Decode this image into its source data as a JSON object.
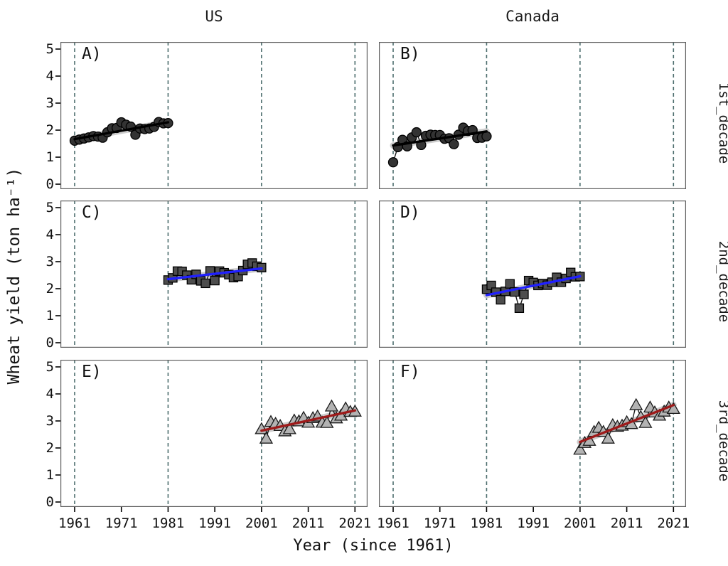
{
  "chart_data": {
    "type": "scatter",
    "title": "",
    "xlabel": "Year (since 1961)",
    "ylabel": "Wheat yield (ton ha⁻¹)",
    "facet_columns": [
      "US",
      "Canada"
    ],
    "facet_rows": [
      "1st_decade",
      "2nd_decade",
      "3rd_decade"
    ],
    "ylim": [
      0,
      5
    ],
    "x_ticks": [
      1961,
      1971,
      1981,
      1991,
      2001,
      2011,
      2021
    ],
    "y_ticks": [
      0,
      1,
      2,
      3,
      4,
      5
    ],
    "vlines": [
      1961,
      1981,
      2001,
      2021
    ],
    "legend": "none",
    "grid": "off",
    "colors": {
      "vline": "#4d6e6e",
      "ribbon": "#c9c9c9",
      "border": "#5f5f5f",
      "connect": "#1a1a1a",
      "tick": "#000000"
    },
    "panels": [
      {
        "label": "A)",
        "col": "US",
        "row": "1st_decade",
        "marker": "circle",
        "marker_fill": "#333333",
        "marker_stroke": "#000000",
        "trend_color": "#000000",
        "years": [
          1961,
          1962,
          1963,
          1964,
          1965,
          1966,
          1967,
          1968,
          1969,
          1970,
          1971,
          1972,
          1973,
          1974,
          1975,
          1976,
          1977,
          1978,
          1979,
          1980,
          1981
        ],
        "values": [
          1.61,
          1.65,
          1.69,
          1.73,
          1.78,
          1.76,
          1.72,
          1.92,
          2.07,
          2.08,
          2.29,
          2.2,
          2.13,
          1.83,
          2.06,
          2.04,
          2.06,
          2.12,
          2.3,
          2.25,
          2.26
        ]
      },
      {
        "label": "B)",
        "col": "Canada",
        "row": "1st_decade",
        "marker": "circle",
        "marker_fill": "#333333",
        "marker_stroke": "#000000",
        "trend_color": "#000000",
        "years": [
          1961,
          1962,
          1963,
          1964,
          1965,
          1966,
          1967,
          1968,
          1969,
          1970,
          1971,
          1972,
          1973,
          1974,
          1975,
          1976,
          1977,
          1978,
          1979,
          1980,
          1981
        ],
        "values": [
          0.81,
          1.37,
          1.64,
          1.4,
          1.73,
          1.92,
          1.45,
          1.79,
          1.83,
          1.82,
          1.82,
          1.68,
          1.7,
          1.48,
          1.83,
          2.09,
          1.97,
          2.0,
          1.71,
          1.72,
          1.77
        ]
      },
      {
        "label": "C)",
        "col": "US",
        "row": "2nd_decade",
        "marker": "square",
        "marker_fill": "#4d4d4d",
        "marker_stroke": "#000000",
        "trend_color": "#2020ff",
        "years": [
          1981,
          1982,
          1983,
          1984,
          1985,
          1986,
          1987,
          1988,
          1989,
          1990,
          1991,
          1992,
          1993,
          1994,
          1995,
          1996,
          1997,
          1998,
          1999,
          2000,
          2001
        ],
        "values": [
          2.32,
          2.4,
          2.65,
          2.64,
          2.5,
          2.33,
          2.53,
          2.29,
          2.2,
          2.66,
          2.3,
          2.65,
          2.59,
          2.52,
          2.41,
          2.45,
          2.67,
          2.9,
          2.95,
          2.83,
          2.78
        ]
      },
      {
        "label": "D)",
        "col": "Canada",
        "row": "2nd_decade",
        "marker": "square",
        "marker_fill": "#4d4d4d",
        "marker_stroke": "#000000",
        "trend_color": "#2020ff",
        "years": [
          1981,
          1982,
          1983,
          1984,
          1985,
          1986,
          1987,
          1988,
          1989,
          1990,
          1991,
          1992,
          1993,
          1994,
          1995,
          1996,
          1997,
          1998,
          1999,
          2000,
          2001
        ],
        "values": [
          1.98,
          2.12,
          1.87,
          1.59,
          1.9,
          2.18,
          1.88,
          1.28,
          1.79,
          2.3,
          2.23,
          2.12,
          2.19,
          2.13,
          2.24,
          2.42,
          2.24,
          2.38,
          2.6,
          2.44,
          2.45
        ]
      },
      {
        "label": "E)",
        "col": "US",
        "row": "3rd_decade",
        "marker": "triangle",
        "marker_fill": "#b3b3b3",
        "marker_stroke": "#1a1a1a",
        "trend_color": "#9e1a1a",
        "years": [
          2001,
          2002,
          2003,
          2004,
          2005,
          2006,
          2007,
          2008,
          2009,
          2010,
          2011,
          2012,
          2013,
          2014,
          2015,
          2016,
          2017,
          2018,
          2019,
          2020,
          2021
        ],
        "values": [
          2.7,
          2.35,
          2.97,
          2.9,
          2.82,
          2.62,
          2.7,
          3.02,
          2.99,
          3.12,
          2.94,
          3.11,
          3.17,
          2.94,
          2.93,
          3.54,
          3.1,
          3.2,
          3.47,
          3.34,
          3.35
        ]
      },
      {
        "label": "F)",
        "col": "Canada",
        "row": "3rd_decade",
        "marker": "triangle",
        "marker_fill": "#b3b3b3",
        "marker_stroke": "#1a1a1a",
        "trend_color": "#9e1a1a",
        "years": [
          2001,
          2002,
          2003,
          2004,
          2005,
          2006,
          2007,
          2008,
          2009,
          2010,
          2011,
          2012,
          2013,
          2014,
          2015,
          2016,
          2017,
          2018,
          2019,
          2020,
          2021
        ],
        "values": [
          1.94,
          2.19,
          2.27,
          2.6,
          2.75,
          2.6,
          2.35,
          2.85,
          2.79,
          2.83,
          2.96,
          2.89,
          3.59,
          3.15,
          2.93,
          3.5,
          3.32,
          3.2,
          3.35,
          3.5,
          3.45
        ]
      }
    ]
  }
}
